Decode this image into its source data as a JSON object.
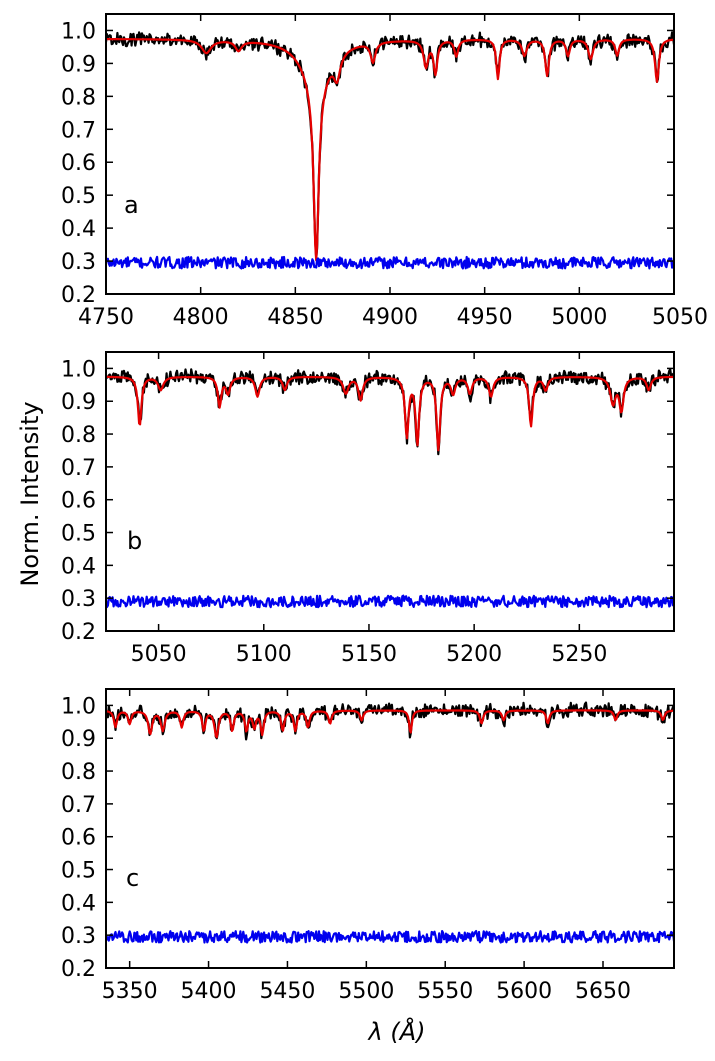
{
  "figure": {
    "ylabel": "Norm. Intensity",
    "xlabel": "λ (Å)"
  },
  "chart_data": [
    {
      "type": "line",
      "panel_label": "a",
      "xlim": [
        4750,
        5050
      ],
      "ylim": [
        0.2,
        1.05
      ],
      "xticks": [
        "4750",
        "4800",
        "4850",
        "4900",
        "4950",
        "5000",
        "5050"
      ],
      "yticks": [
        "0.2",
        "0.3",
        "0.4",
        "0.5",
        "0.6",
        "0.7",
        "0.8",
        "0.9",
        "1.0"
      ],
      "continuum": {
        "black": 0.975,
        "red": 0.975,
        "blue": 0.295
      },
      "colors": {
        "black": "#000000",
        "red": "#e50000",
        "blue": "#0000ee"
      },
      "lines": [
        {
          "center": 4861,
          "depth": 0.54,
          "width": 1.6
        },
        {
          "center": 4861,
          "depth": 0.13,
          "width": 9
        },
        {
          "center": 4803,
          "depth": 0.04,
          "width": 3
        },
        {
          "center": 4820,
          "depth": 0.03,
          "width": 2
        },
        {
          "center": 4872,
          "depth": 0.07,
          "width": 2
        },
        {
          "center": 4891,
          "depth": 0.06,
          "width": 1.5
        },
        {
          "center": 4919,
          "depth": 0.08,
          "width": 1.5
        },
        {
          "center": 4924,
          "depth": 0.1,
          "width": 1.2
        },
        {
          "center": 4935,
          "depth": 0.05,
          "width": 1.2
        },
        {
          "center": 4957,
          "depth": 0.12,
          "width": 1.0
        },
        {
          "center": 4971,
          "depth": 0.05,
          "width": 1.5
        },
        {
          "center": 4983,
          "depth": 0.11,
          "width": 1.2
        },
        {
          "center": 4994,
          "depth": 0.05,
          "width": 1.2
        },
        {
          "center": 5006,
          "depth": 0.06,
          "width": 1.5
        },
        {
          "center": 5020,
          "depth": 0.05,
          "width": 1.2
        },
        {
          "center": 5041,
          "depth": 0.13,
          "width": 1.2
        }
      ]
    },
    {
      "type": "line",
      "panel_label": "b",
      "xlim": [
        5025,
        5295
      ],
      "ylim": [
        0.2,
        1.05
      ],
      "xticks": [
        "5050",
        "5100",
        "5150",
        "5200",
        "5250"
      ],
      "xtick_values": [
        5050,
        5100,
        5150,
        5200,
        5250
      ],
      "yticks": [
        "0.2",
        "0.3",
        "0.4",
        "0.5",
        "0.6",
        "0.7",
        "0.8",
        "0.9",
        "1.0"
      ],
      "continuum": {
        "black": 0.975,
        "red": 0.975,
        "blue": 0.29
      },
      "colors": {
        "black": "#000000",
        "red": "#e50000",
        "blue": "#0000ee"
      },
      "lines": [
        {
          "center": 5041,
          "depth": 0.15,
          "width": 1.0
        },
        {
          "center": 5051,
          "depth": 0.04,
          "width": 1.5
        },
        {
          "center": 5079,
          "depth": 0.09,
          "width": 1.0
        },
        {
          "center": 5083,
          "depth": 0.05,
          "width": 1.2
        },
        {
          "center": 5097,
          "depth": 0.06,
          "width": 1.2
        },
        {
          "center": 5110,
          "depth": 0.04,
          "width": 1.2
        },
        {
          "center": 5139,
          "depth": 0.05,
          "width": 1.5
        },
        {
          "center": 5146,
          "depth": 0.07,
          "width": 1.2
        },
        {
          "center": 5168,
          "depth": 0.18,
          "width": 1.0
        },
        {
          "center": 5173,
          "depth": 0.2,
          "width": 1.0
        },
        {
          "center": 5183,
          "depth": 0.22,
          "width": 1.0
        },
        {
          "center": 5190,
          "depth": 0.05,
          "width": 1.2
        },
        {
          "center": 5198,
          "depth": 0.05,
          "width": 1.2
        },
        {
          "center": 5208,
          "depth": 0.06,
          "width": 1.2
        },
        {
          "center": 5227,
          "depth": 0.15,
          "width": 1.0
        },
        {
          "center": 5234,
          "depth": 0.04,
          "width": 1.2
        },
        {
          "center": 5266,
          "depth": 0.08,
          "width": 1.5
        },
        {
          "center": 5270,
          "depth": 0.1,
          "width": 1.2
        },
        {
          "center": 5283,
          "depth": 0.04,
          "width": 1.2
        }
      ]
    },
    {
      "type": "line",
      "panel_label": "c",
      "xlim": [
        5335,
        5695
      ],
      "ylim": [
        0.2,
        1.05
      ],
      "xticks": [
        "5350",
        "5400",
        "5450",
        "5500",
        "5550",
        "5600",
        "5650"
      ],
      "xtick_values": [
        5350,
        5400,
        5450,
        5500,
        5550,
        5600,
        5650
      ],
      "yticks": [
        "0.2",
        "0.3",
        "0.4",
        "0.5",
        "0.6",
        "0.7",
        "0.8",
        "0.9",
        "1.0"
      ],
      "continuum": {
        "black": 0.985,
        "red": 0.985,
        "blue": 0.295
      },
      "colors": {
        "black": "#000000",
        "red": "#e50000",
        "blue": "#0000ee"
      },
      "lines": [
        {
          "center": 5341,
          "depth": 0.05,
          "width": 1.2
        },
        {
          "center": 5350,
          "depth": 0.04,
          "width": 1.2
        },
        {
          "center": 5363,
          "depth": 0.07,
          "width": 1.5
        },
        {
          "center": 5371,
          "depth": 0.06,
          "width": 1.5
        },
        {
          "center": 5383,
          "depth": 0.05,
          "width": 1.2
        },
        {
          "center": 5397,
          "depth": 0.06,
          "width": 1.2
        },
        {
          "center": 5405,
          "depth": 0.08,
          "width": 1.5
        },
        {
          "center": 5415,
          "depth": 0.06,
          "width": 1.2
        },
        {
          "center": 5424,
          "depth": 0.06,
          "width": 1.2
        },
        {
          "center": 5429,
          "depth": 0.05,
          "width": 1.2
        },
        {
          "center": 5434,
          "depth": 0.07,
          "width": 1.2
        },
        {
          "center": 5447,
          "depth": 0.06,
          "width": 1.2
        },
        {
          "center": 5455,
          "depth": 0.06,
          "width": 1.2
        },
        {
          "center": 5463,
          "depth": 0.05,
          "width": 1.2
        },
        {
          "center": 5477,
          "depth": 0.04,
          "width": 1.2
        },
        {
          "center": 5497,
          "depth": 0.03,
          "width": 1.2
        },
        {
          "center": 5528,
          "depth": 0.07,
          "width": 1.0
        },
        {
          "center": 5573,
          "depth": 0.04,
          "width": 1.2
        },
        {
          "center": 5587,
          "depth": 0.03,
          "width": 1.2
        },
        {
          "center": 5615,
          "depth": 0.04,
          "width": 1.2
        },
        {
          "center": 5658,
          "depth": 0.03,
          "width": 1.2
        },
        {
          "center": 5688,
          "depth": 0.03,
          "width": 1.2
        }
      ]
    }
  ]
}
